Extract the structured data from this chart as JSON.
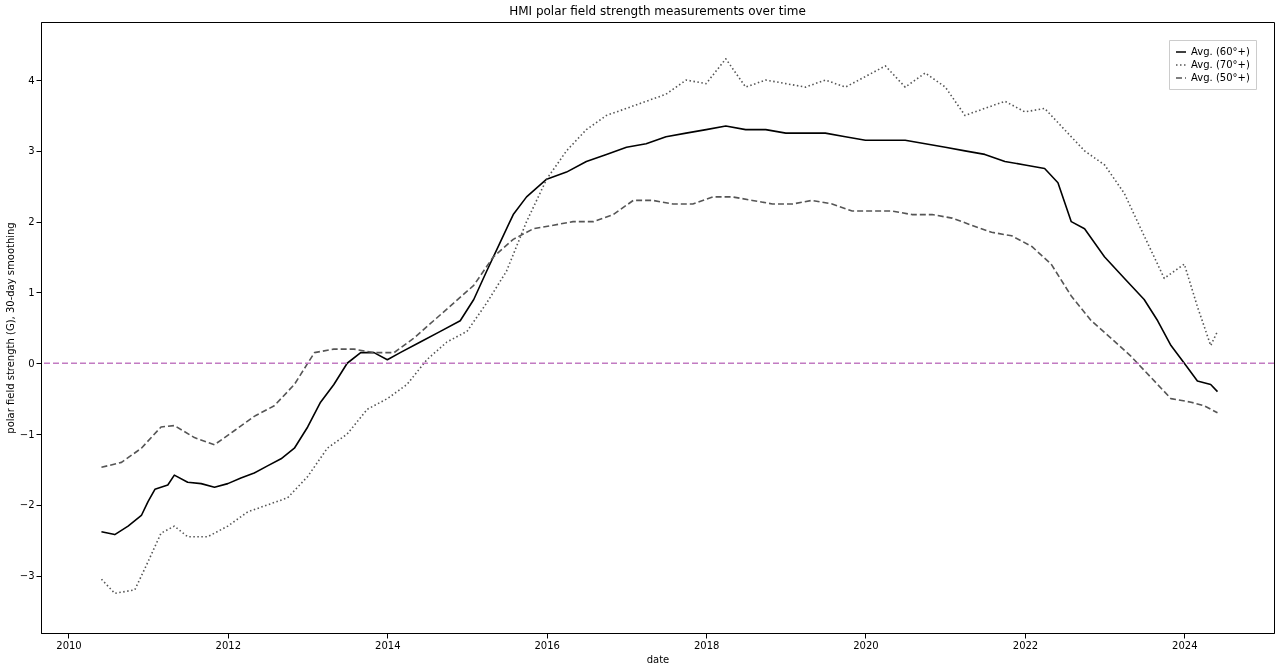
{
  "chart_data": {
    "type": "line",
    "title": "HMI polar field strength measurements over time",
    "xlabel": "date",
    "ylabel": "polar field strength (G), 30-day smoothing",
    "xlim": [
      "2009-08-28",
      "2025-02-15"
    ],
    "xticks": [
      "2010",
      "2012",
      "2014",
      "2016",
      "2018",
      "2020",
      "2022",
      "2024"
    ],
    "ylim": [
      -3.81,
      4.82
    ],
    "yticks": [
      -3,
      -2,
      -1,
      0,
      1,
      2,
      3,
      4
    ],
    "grid": false,
    "legend": "top right",
    "ref_lines": [
      {
        "axis": "y",
        "value": 0,
        "color": "#c27bc2",
        "line_style": "dashed"
      }
    ],
    "series": [
      {
        "name": "Avg. (60°+)",
        "color": "#000000",
        "line_style": "solid",
        "x": [
          "2010-06",
          "2010-08",
          "2010-10",
          "2010-12",
          "2011-01",
          "2011-02",
          "2011-04",
          "2011-05",
          "2011-07",
          "2011-09",
          "2011-11",
          "2012-01",
          "2012-03",
          "2012-05",
          "2012-07",
          "2012-09",
          "2012-11",
          "2013-01",
          "2013-03",
          "2013-05",
          "2013-07",
          "2013-09",
          "2013-11",
          "2014-01",
          "2014-03",
          "2014-06",
          "2014-09",
          "2014-12",
          "2015-02",
          "2015-04",
          "2015-06",
          "2015-08",
          "2015-10",
          "2016-01",
          "2016-04",
          "2016-07",
          "2016-10",
          "2017-01",
          "2017-04",
          "2017-07",
          "2017-10",
          "2018-01",
          "2018-04",
          "2018-07",
          "2018-10",
          "2019-01",
          "2019-04",
          "2019-07",
          "2019-10",
          "2020-01",
          "2020-04",
          "2020-07",
          "2020-10",
          "2021-01",
          "2021-04",
          "2021-07",
          "2021-10",
          "2022-01",
          "2022-04",
          "2022-06",
          "2022-08",
          "2022-10",
          "2023-01",
          "2023-04",
          "2023-07",
          "2023-09",
          "2023-11",
          "2024-01",
          "2024-03",
          "2024-05",
          "2024-06"
        ],
        "values": [
          -2.38,
          -2.42,
          -2.3,
          -2.15,
          -1.95,
          -1.78,
          -1.72,
          -1.58,
          -1.68,
          -1.7,
          -1.75,
          -1.7,
          -1.62,
          -1.55,
          -1.45,
          -1.35,
          -1.2,
          -0.9,
          -0.55,
          -0.3,
          0.0,
          0.15,
          0.15,
          0.05,
          0.15,
          0.3,
          0.45,
          0.6,
          0.9,
          1.3,
          1.7,
          2.1,
          2.35,
          2.6,
          2.7,
          2.85,
          2.95,
          3.05,
          3.1,
          3.2,
          3.25,
          3.3,
          3.35,
          3.3,
          3.3,
          3.25,
          3.25,
          3.25,
          3.2,
          3.15,
          3.15,
          3.15,
          3.1,
          3.05,
          3.0,
          2.95,
          2.85,
          2.8,
          2.75,
          2.55,
          2.0,
          1.9,
          1.5,
          1.2,
          0.9,
          0.6,
          0.25,
          0.0,
          -0.25,
          -0.3,
          -0.4
        ]
      },
      {
        "name": "Avg. (70°+)",
        "color": "#555555",
        "line_style": "dotted",
        "x": [
          "2010-06",
          "2010-08",
          "2010-11",
          "2011-01",
          "2011-03",
          "2011-05",
          "2011-07",
          "2011-10",
          "2012-01",
          "2012-04",
          "2012-07",
          "2012-10",
          "2013-01",
          "2013-04",
          "2013-07",
          "2013-10",
          "2014-01",
          "2014-04",
          "2014-07",
          "2014-10",
          "2015-01",
          "2015-04",
          "2015-07",
          "2015-10",
          "2016-01",
          "2016-04",
          "2016-07",
          "2016-10",
          "2017-01",
          "2017-04",
          "2017-07",
          "2017-10",
          "2018-01",
          "2018-04",
          "2018-07",
          "2018-10",
          "2019-01",
          "2019-04",
          "2019-07",
          "2019-10",
          "2020-01",
          "2020-04",
          "2020-07",
          "2020-10",
          "2021-01",
          "2021-04",
          "2021-07",
          "2021-10",
          "2022-01",
          "2022-04",
          "2022-07",
          "2022-10",
          "2023-01",
          "2023-04",
          "2023-07",
          "2023-10",
          "2024-01",
          "2024-03",
          "2024-05",
          "2024-06"
        ],
        "values": [
          -3.05,
          -3.25,
          -3.2,
          -2.8,
          -2.4,
          -2.3,
          -2.45,
          -2.45,
          -2.3,
          -2.1,
          -2.0,
          -1.9,
          -1.6,
          -1.2,
          -1.0,
          -0.65,
          -0.5,
          -0.3,
          0.05,
          0.3,
          0.45,
          0.85,
          1.3,
          2.0,
          2.6,
          3.0,
          3.3,
          3.5,
          3.6,
          3.7,
          3.8,
          4.0,
          3.95,
          4.3,
          3.9,
          4.0,
          3.95,
          3.9,
          4.0,
          3.9,
          4.05,
          4.2,
          3.9,
          4.1,
          3.9,
          3.5,
          3.6,
          3.7,
          3.55,
          3.6,
          3.3,
          3.0,
          2.8,
          2.4,
          1.8,
          1.2,
          1.4,
          0.8,
          0.25,
          0.45
        ]
      },
      {
        "name": "Avg. (50°+)",
        "color": "#555555",
        "line_style": "dashed",
        "x": [
          "2010-06",
          "2010-09",
          "2010-12",
          "2011-03",
          "2011-05",
          "2011-08",
          "2011-11",
          "2012-02",
          "2012-05",
          "2012-08",
          "2012-11",
          "2013-02",
          "2013-05",
          "2013-08",
          "2013-11",
          "2014-02",
          "2014-05",
          "2014-08",
          "2014-11",
          "2015-02",
          "2015-05",
          "2015-08",
          "2015-11",
          "2016-02",
          "2016-05",
          "2016-08",
          "2016-11",
          "2017-02",
          "2017-05",
          "2017-08",
          "2017-11",
          "2018-02",
          "2018-05",
          "2018-08",
          "2018-11",
          "2019-02",
          "2019-05",
          "2019-08",
          "2019-11",
          "2020-02",
          "2020-05",
          "2020-08",
          "2020-11",
          "2021-02",
          "2021-05",
          "2021-08",
          "2021-11",
          "2022-02",
          "2022-05",
          "2022-08",
          "2022-11",
          "2023-02",
          "2023-05",
          "2023-08",
          "2023-11",
          "2024-02",
          "2024-04",
          "2024-06"
        ],
        "values": [
          -1.47,
          -1.4,
          -1.2,
          -0.9,
          -0.88,
          -1.05,
          -1.15,
          -0.95,
          -0.75,
          -0.6,
          -0.3,
          0.15,
          0.2,
          0.2,
          0.15,
          0.15,
          0.35,
          0.6,
          0.85,
          1.1,
          1.5,
          1.75,
          1.9,
          1.95,
          2.0,
          2.0,
          2.1,
          2.3,
          2.3,
          2.25,
          2.25,
          2.35,
          2.35,
          2.3,
          2.25,
          2.25,
          2.3,
          2.25,
          2.15,
          2.15,
          2.15,
          2.1,
          2.1,
          2.05,
          1.95,
          1.85,
          1.8,
          1.65,
          1.4,
          0.95,
          0.6,
          0.35,
          0.1,
          -0.2,
          -0.5,
          -0.55,
          -0.6,
          -0.7
        ]
      }
    ]
  }
}
